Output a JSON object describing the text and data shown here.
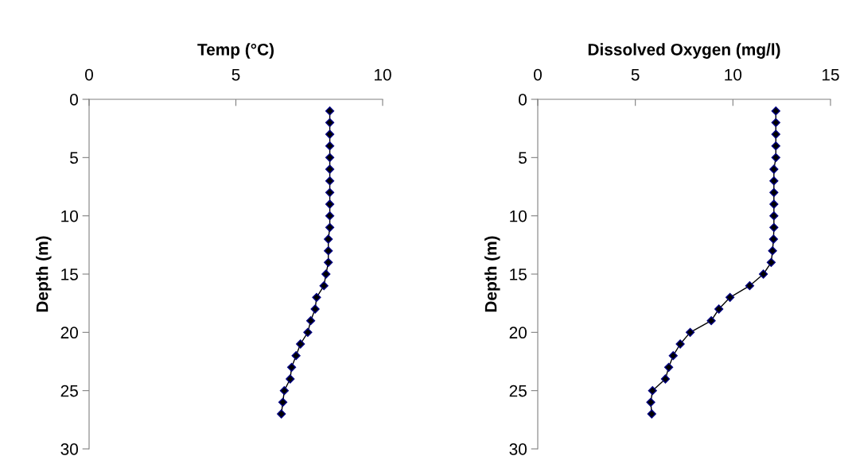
{
  "chart_data": [
    {
      "type": "line",
      "title": "Temp (°C)",
      "ylabel": "Depth (m)",
      "marker": "diamond",
      "line_style": "solid",
      "grid": false,
      "legend": false,
      "xlim": [
        0,
        10
      ],
      "xticks": [
        0,
        5,
        10
      ],
      "ylim": [
        30,
        0
      ],
      "yticks": [
        0,
        5,
        10,
        15,
        20,
        25,
        30
      ],
      "series": [
        {
          "color": "#000080",
          "x": [
            8.2,
            8.2,
            8.2,
            8.2,
            8.2,
            8.2,
            8.2,
            8.2,
            8.2,
            8.2,
            8.2,
            8.15,
            8.15,
            8.15,
            8.07,
            8.0,
            7.75,
            7.7,
            7.55,
            7.45,
            7.2,
            7.05,
            6.9,
            6.85,
            6.65,
            6.6,
            6.55
          ],
          "values": [
            1,
            2,
            3,
            4,
            5,
            6,
            7,
            8,
            9,
            10,
            11,
            12,
            13,
            14,
            15,
            16,
            17,
            18,
            19,
            20,
            21,
            22,
            23,
            24,
            25,
            26,
            27
          ]
        }
      ]
    },
    {
      "type": "line",
      "title": "Dissolved Oxygen (mg/l)",
      "ylabel": "Depth (m)",
      "marker": "diamond",
      "line_style": "solid",
      "grid": false,
      "legend": false,
      "xlim": [
        0,
        15
      ],
      "xticks": [
        0,
        5,
        10,
        15
      ],
      "ylim": [
        30,
        0
      ],
      "yticks": [
        0,
        5,
        10,
        15,
        20,
        25,
        30
      ],
      "series": [
        {
          "color": "#000080",
          "x": [
            12.2,
            12.2,
            12.2,
            12.2,
            12.2,
            12.1,
            12.1,
            12.1,
            12.1,
            12.1,
            12.1,
            12.08,
            12.03,
            11.96,
            11.56,
            10.86,
            9.85,
            9.28,
            8.89,
            7.81,
            7.3,
            6.94,
            6.71,
            6.54,
            5.88,
            5.79,
            5.84
          ],
          "values": [
            1,
            2,
            3,
            4,
            5,
            6,
            7,
            8,
            9,
            10,
            11,
            12,
            13,
            14,
            15,
            16,
            17,
            18,
            19,
            20,
            21,
            22,
            23,
            24,
            25,
            26,
            27
          ]
        }
      ]
    }
  ]
}
